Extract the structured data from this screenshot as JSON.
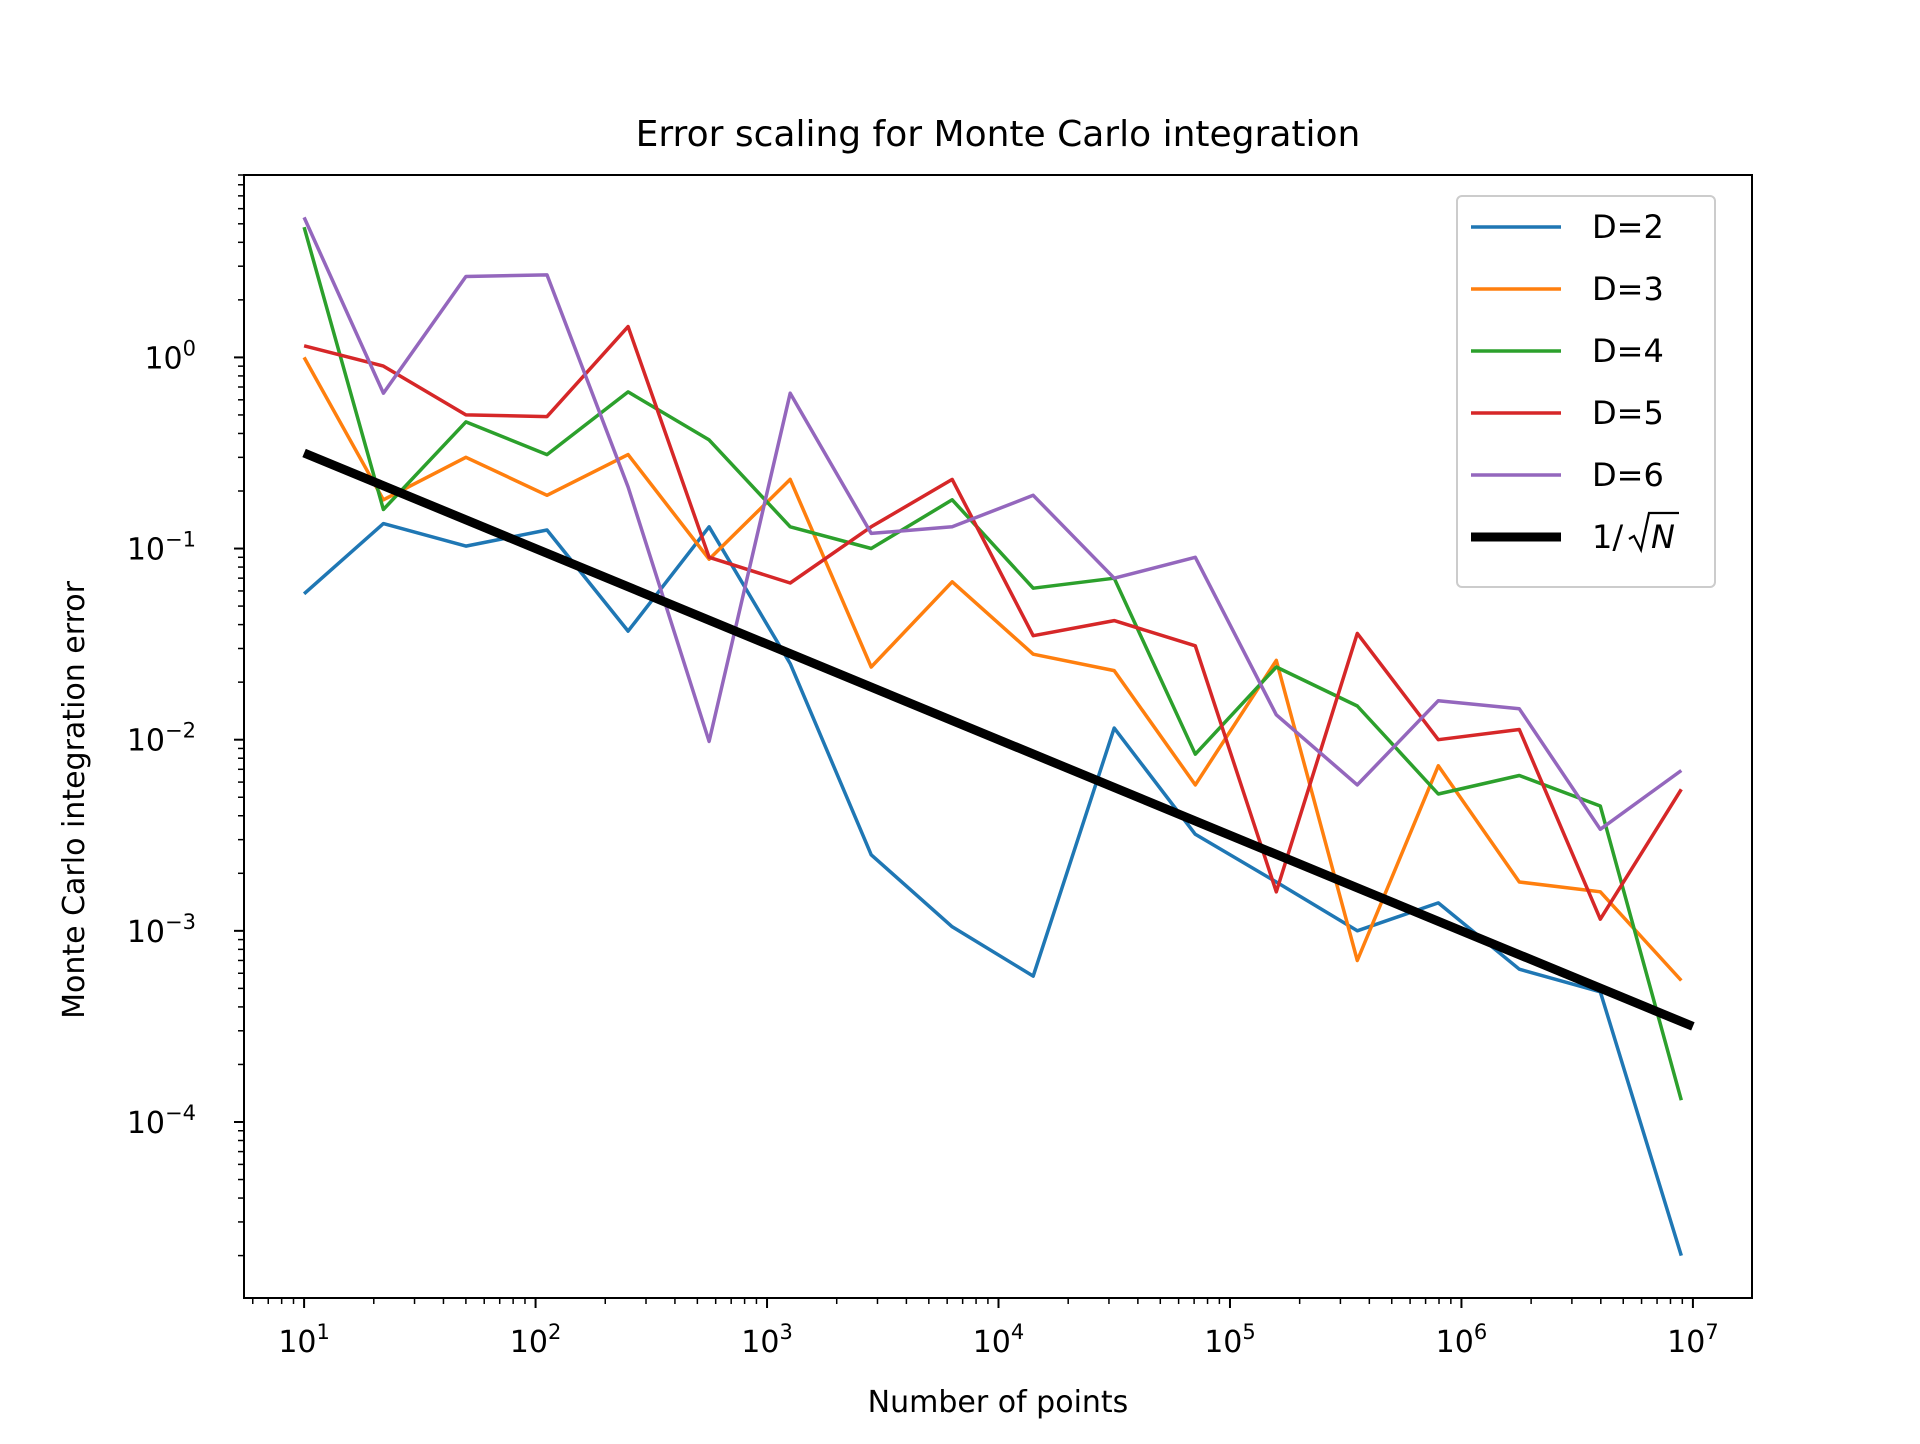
{
  "chart_data": {
    "type": "line",
    "title": "Error scaling for Monte Carlo integration",
    "xlabel": "Number of points",
    "ylabel": "Monte Carlo integration error",
    "xscale": "log",
    "yscale": "log",
    "xlim": [
      5.5,
      18000000
    ],
    "ylim": [
      1.2e-05,
      9
    ],
    "grid": false,
    "legend_position": "top-right",
    "x": [
      10,
      22,
      50,
      112,
      251,
      562,
      1259,
      2818,
      6310,
      14125,
      31623,
      70795,
      158489,
      354813,
      794328,
      1778279,
      3981072,
      8912509
    ],
    "x_tick_labels": [
      {
        "value": 10,
        "base": "10",
        "exp": "1"
      },
      {
        "value": 100,
        "base": "10",
        "exp": "2"
      },
      {
        "value": 1000,
        "base": "10",
        "exp": "3"
      },
      {
        "value": 10000,
        "base": "10",
        "exp": "4"
      },
      {
        "value": 100000,
        "base": "10",
        "exp": "5"
      },
      {
        "value": 1000000,
        "base": "10",
        "exp": "6"
      },
      {
        "value": 10000000,
        "base": "10",
        "exp": "7"
      }
    ],
    "y_tick_labels": [
      {
        "value": 1,
        "base": "10",
        "exp": "0"
      },
      {
        "value": 0.1,
        "base": "10",
        "exp": "−1"
      },
      {
        "value": 0.01,
        "base": "10",
        "exp": "−2"
      },
      {
        "value": 0.001,
        "base": "10",
        "exp": "−3"
      },
      {
        "value": 0.0001,
        "base": "10",
        "exp": "−4"
      }
    ],
    "series": [
      {
        "name": "D=2",
        "color": "#1f77b4",
        "values": [
          0.058,
          0.135,
          0.103,
          0.125,
          0.037,
          0.13,
          0.025,
          0.0025,
          0.00105,
          0.00058,
          0.0115,
          0.0032,
          0.0018,
          0.001,
          0.0014,
          0.00063,
          0.00048,
          2e-05
        ]
      },
      {
        "name": "D=3",
        "color": "#ff7f0e",
        "values": [
          1.0,
          0.18,
          0.3,
          0.19,
          0.31,
          0.088,
          0.23,
          0.024,
          0.067,
          0.028,
          0.023,
          0.0058,
          0.026,
          0.0007,
          0.0073,
          0.0018,
          0.0016,
          0.00055
        ]
      },
      {
        "name": "D=4",
        "color": "#2ca02c",
        "values": [
          4.8,
          0.16,
          0.46,
          0.31,
          0.66,
          0.37,
          0.13,
          0.1,
          0.18,
          0.062,
          0.07,
          0.0084,
          0.024,
          0.015,
          0.0052,
          0.0065,
          0.0045,
          0.00013
        ]
      },
      {
        "name": "D=5",
        "color": "#d62728",
        "values": [
          1.15,
          0.9,
          0.5,
          0.49,
          1.45,
          0.09,
          0.066,
          0.13,
          0.23,
          0.035,
          0.042,
          0.031,
          0.0016,
          0.036,
          0.01,
          0.0113,
          0.00115,
          0.0055
        ]
      },
      {
        "name": "D=6",
        "color": "#9467bd",
        "values": [
          5.4,
          0.65,
          2.65,
          2.7,
          0.21,
          0.0098,
          0.65,
          0.12,
          0.13,
          0.19,
          0.07,
          0.09,
          0.0135,
          0.0058,
          0.016,
          0.0145,
          0.0034,
          0.0069
        ]
      }
    ],
    "reference_line": {
      "name": "1/√N",
      "legend_prefix": "1/",
      "legend_var": "N",
      "color": "#000000",
      "x": [
        10,
        10000000
      ],
      "values": [
        0.3162,
        0.0003162
      ]
    }
  }
}
